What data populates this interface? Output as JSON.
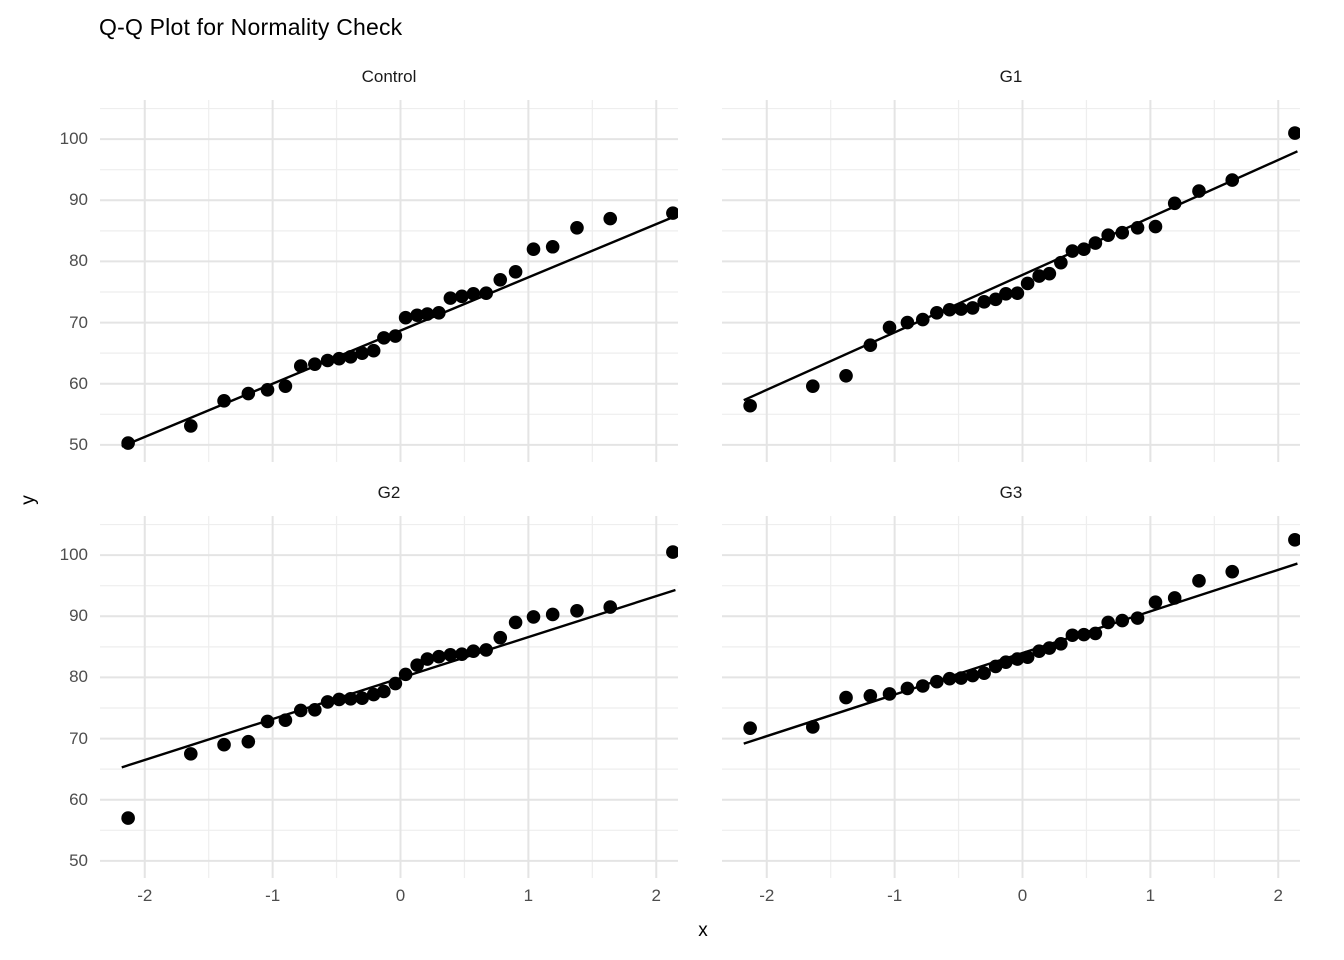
{
  "chart_data": {
    "type": "scatter",
    "title": "Q-Q Plot for Normality Check",
    "xlabel": "x",
    "ylabel": "y",
    "facet_layout": "2x2",
    "grid": "on",
    "legend": "none",
    "xlim": [
      -2.35,
      2.17
    ],
    "ylim": [
      47.2,
      106.4
    ],
    "x_major_ticks": [
      -2,
      -1,
      0,
      1,
      2
    ],
    "x_minor_ticks": [
      -1.5,
      -0.5,
      0.5,
      1.5
    ],
    "y_major_ticks": [
      50,
      60,
      70,
      80,
      90,
      100
    ],
    "y_minor_ticks": [
      55,
      65,
      75,
      85,
      95,
      105
    ],
    "point_color": "#000000",
    "line_color": "#000000",
    "major_grid_color": "#e4e4e4",
    "minor_grid_color": "#eeeeee",
    "tick_label_color": "#4d4d4d",
    "line_x_range": [
      -2.18,
      2.15
    ],
    "theoretical_quantiles": [
      -2.13,
      -1.64,
      -1.38,
      -1.19,
      -1.04,
      -0.9,
      -0.78,
      -0.67,
      -0.57,
      -0.48,
      -0.39,
      -0.3,
      -0.21,
      -0.13,
      -0.04,
      0.04,
      0.13,
      0.21,
      0.3,
      0.39,
      0.48,
      0.57,
      0.67,
      0.78,
      0.9,
      1.04,
      1.19,
      1.38,
      1.64,
      2.13
    ],
    "panels": [
      {
        "label": "Control",
        "sample_quantiles": [
          50.3,
          53.1,
          57.2,
          58.4,
          59.0,
          59.6,
          62.9,
          63.2,
          63.8,
          64.1,
          64.4,
          65.0,
          65.4,
          67.5,
          67.8,
          70.8,
          71.2,
          71.4,
          71.6,
          74.0,
          74.3,
          74.7,
          74.8,
          77.0,
          78.3,
          82.0,
          82.4,
          85.5,
          87.0,
          87.9
        ],
        "qq_line": {
          "intercept": 68.7,
          "slope": 8.7
        }
      },
      {
        "label": "G1",
        "sample_quantiles": [
          56.4,
          59.6,
          61.3,
          66.3,
          69.2,
          70.0,
          70.5,
          71.6,
          72.1,
          72.2,
          72.4,
          73.4,
          73.8,
          74.7,
          74.8,
          76.4,
          77.6,
          78.0,
          79.8,
          81.7,
          82.0,
          83.0,
          84.3,
          84.7,
          85.5,
          85.7,
          89.5,
          91.5,
          93.3,
          101.0
        ],
        "qq_line": {
          "intercept": 77.8,
          "slope": 9.4
        }
      },
      {
        "label": "G2",
        "sample_quantiles": [
          57.0,
          67.5,
          69.0,
          69.5,
          72.8,
          73.0,
          74.6,
          74.7,
          76.0,
          76.4,
          76.5,
          76.6,
          77.2,
          77.7,
          79.0,
          80.5,
          82.0,
          83.0,
          83.4,
          83.7,
          83.8,
          84.3,
          84.5,
          86.5,
          89.0,
          89.9,
          90.3,
          90.9,
          91.5,
          100.5
        ],
        "qq_line": {
          "intercept": 79.9,
          "slope": 6.7
        }
      },
      {
        "label": "G3",
        "sample_quantiles": [
          71.7,
          71.9,
          76.7,
          77.0,
          77.3,
          78.2,
          78.6,
          79.3,
          79.8,
          79.9,
          80.3,
          80.7,
          81.8,
          82.5,
          83.0,
          83.3,
          84.3,
          84.8,
          85.5,
          86.9,
          87.0,
          87.2,
          89.0,
          89.3,
          89.7,
          92.3,
          93.0,
          95.8,
          97.3,
          102.5
        ],
        "qq_line": {
          "intercept": 84.0,
          "slope": 6.8
        }
      }
    ]
  }
}
